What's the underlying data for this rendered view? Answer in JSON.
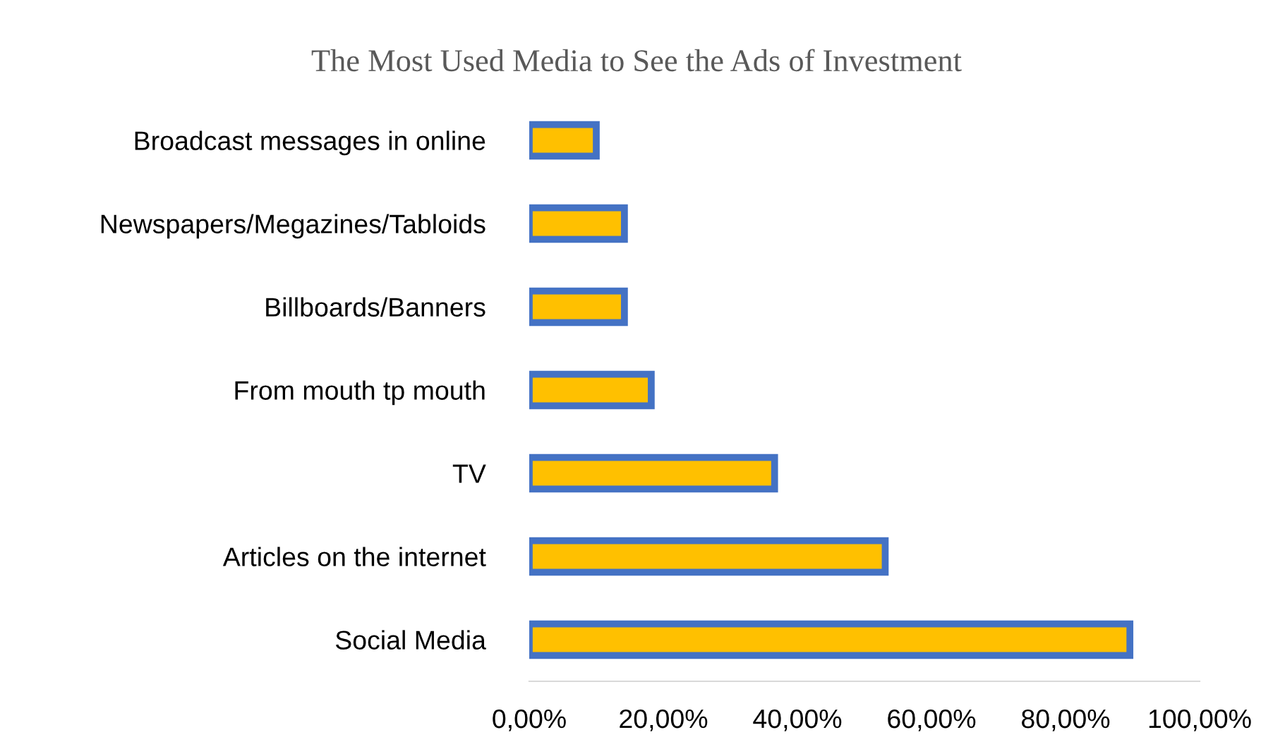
{
  "chart_data": {
    "type": "bar",
    "orientation": "horizontal",
    "title": "The Most Used Media to See the Ads of Investment",
    "categories": [
      "Broadcast messages in online",
      "Newspapers/Megazines/Tabloids",
      "Billboards/Banners",
      "From mouth tp mouth",
      "TV",
      "Articles on the internet",
      "Social Media"
    ],
    "values": [
      10.0,
      14.2,
      14.2,
      18.2,
      36.6,
      53.1,
      89.6
    ],
    "color": "#ffc000",
    "xlim": [
      0,
      100
    ],
    "xticks": [
      {
        "value": 0,
        "label": "0,00%"
      },
      {
        "value": 20,
        "label": "20,00%"
      },
      {
        "value": 40,
        "label": "40,00%"
      },
      {
        "value": 60,
        "label": "60,00%"
      },
      {
        "value": 80,
        "label": "80,00%"
      },
      {
        "value": 100,
        "label": "100,00%"
      }
    ],
    "grid": false,
    "legend": false
  }
}
